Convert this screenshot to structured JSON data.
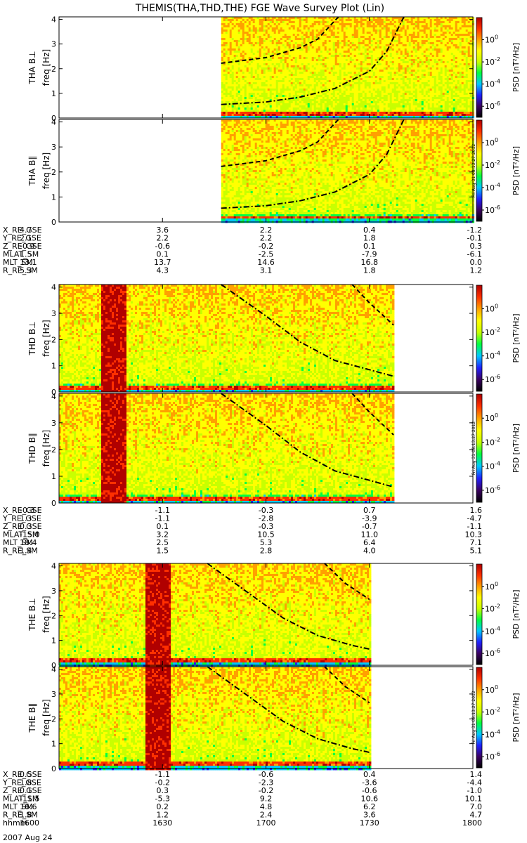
{
  "title": "THEMIS(THA,THD,THE) FGE Wave Survey Plot (Lin)",
  "date_label": "2007 Aug 24",
  "stamp": "Fri Aug 31 08:13:27 2012",
  "ylabel_freq": "freq [Hz]",
  "colorbar_label": "PSD [nT²/Hz]",
  "chart_data": {
    "type": "heatmap",
    "x_range_hhmm": [
      "1600",
      "1800"
    ],
    "x_ticks": [
      "1600",
      "1630",
      "1700",
      "1730",
      "1800"
    ],
    "y_range_hz": [
      0,
      4.1
    ],
    "y_ticks": [
      "0",
      "1",
      "2",
      "3",
      "4"
    ],
    "colorbar": {
      "scale": "log",
      "range": [
        1e-07,
        100
      ],
      "ticks": [
        {
          "base": "10",
          "exp": "0",
          "value": 1
        },
        {
          "base": "10",
          "exp": "-2",
          "value": 0.01
        },
        {
          "base": "10",
          "exp": "-4",
          "value": 0.0001
        },
        {
          "base": "10",
          "exp": "-6",
          "value": 1e-06
        }
      ],
      "colors": [
        "#000000",
        "#3a0060",
        "#2020ff",
        "#00c8ff",
        "#00ff40",
        "#c8ff00",
        "#ffff00",
        "#ffa000",
        "#ff3000",
        "#b00000"
      ]
    },
    "panels": [
      {
        "label": "THA B⊥",
        "data_start": "1647",
        "data_end": "1800",
        "gyro_he": [
          [
            1647,
            2.22
          ],
          [
            1700,
            2.45
          ],
          [
            1710,
            2.85
          ],
          [
            1715,
            3.2
          ],
          [
            1721,
            4.1
          ]
        ],
        "gyro_o": [
          [
            1647,
            0.55
          ],
          [
            1700,
            0.65
          ],
          [
            1710,
            0.85
          ],
          [
            1720,
            1.2
          ],
          [
            1730,
            1.9
          ],
          [
            1735,
            2.7
          ],
          [
            1740,
            4.1
          ]
        ]
      },
      {
        "label": "THA B∥",
        "data_start": "1647",
        "data_end": "1800",
        "gyro_he": [
          [
            1647,
            2.22
          ],
          [
            1700,
            2.45
          ],
          [
            1710,
            2.85
          ],
          [
            1715,
            3.2
          ],
          [
            1721,
            4.1
          ]
        ],
        "gyro_o": [
          [
            1647,
            0.55
          ],
          [
            1700,
            0.65
          ],
          [
            1710,
            0.85
          ],
          [
            1720,
            1.2
          ],
          [
            1730,
            1.9
          ],
          [
            1735,
            2.7
          ],
          [
            1740,
            4.1
          ]
        ]
      },
      {
        "label": "THD B⊥",
        "data_start": "1600",
        "data_end": "1737",
        "gyro_he": [
          [
            1725,
            4.1
          ],
          [
            1730,
            3.4
          ],
          [
            1737,
            2.55
          ]
        ],
        "gyro_o": [
          [
            1647,
            4.1
          ],
          [
            1700,
            2.9
          ],
          [
            1710,
            1.9
          ],
          [
            1720,
            1.2
          ],
          [
            1730,
            0.85
          ],
          [
            1737,
            0.6
          ]
        ]
      },
      {
        "label": "THD B∥",
        "data_start": "1600",
        "data_end": "1737",
        "gyro_he": [
          [
            1725,
            4.1
          ],
          [
            1730,
            3.4
          ],
          [
            1737,
            2.55
          ]
        ],
        "gyro_o": [
          [
            1647,
            4.1
          ],
          [
            1700,
            2.9
          ],
          [
            1710,
            1.9
          ],
          [
            1720,
            1.2
          ],
          [
            1730,
            0.85
          ],
          [
            1737,
            0.6
          ]
        ]
      },
      {
        "label": "THE B⊥",
        "data_start": "1600",
        "data_end": "1730",
        "gyro_he": [
          [
            1717,
            4.1
          ],
          [
            1723,
            3.3
          ],
          [
            1730,
            2.65
          ]
        ],
        "gyro_o": [
          [
            1643,
            4.1
          ],
          [
            1655,
            2.9
          ],
          [
            1705,
            1.9
          ],
          [
            1715,
            1.2
          ],
          [
            1725,
            0.8
          ],
          [
            1730,
            0.65
          ]
        ]
      },
      {
        "label": "THE B∥",
        "data_start": "1600",
        "data_end": "1730",
        "gyro_he": [
          [
            1717,
            4.1
          ],
          [
            1723,
            3.3
          ],
          [
            1730,
            2.65
          ]
        ],
        "gyro_o": [
          [
            1643,
            4.1
          ],
          [
            1655,
            2.9
          ],
          [
            1705,
            1.9
          ],
          [
            1715,
            1.2
          ],
          [
            1725,
            0.8
          ],
          [
            1730,
            0.65
          ]
        ]
      }
    ]
  },
  "ephemeris": [
    {
      "probe": "THA",
      "rows": [
        {
          "label": "X_RE_GSE",
          "values": [
            "4.7",
            "3.6",
            "2.2",
            "0.4",
            "-1.2"
          ]
        },
        {
          "label": "Y_RE_GSE",
          "values": [
            "2.1",
            "2.2",
            "2.2",
            "1.8",
            "-0.1"
          ]
        },
        {
          "label": "Z_RE_GSE",
          "values": [
            "-0.9",
            "-0.6",
            "-0.2",
            "0.1",
            "0.3"
          ]
        },
        {
          "label": "MLAT_SM",
          "values": [
            "1.5",
            "0.1",
            "-2.5",
            "-7.9",
            "-6.1"
          ]
        },
        {
          "label": "MLT_SM",
          "values": [
            "13.1",
            "13.7",
            "14.6",
            "16.8",
            "0.0"
          ]
        },
        {
          "label": "R_RE_SM",
          "values": [
            "5.3",
            "4.3",
            "3.1",
            "1.8",
            "1.2"
          ]
        }
      ]
    },
    {
      "probe": "THD",
      "rows": [
        {
          "label": "X_RE_GSE",
          "values": [
            "-0.3",
            "-1.1",
            "-0.3",
            "0.7",
            "1.6"
          ]
        },
        {
          "label": "Y_RE_GSE",
          "values": [
            "1.3",
            "-1.1",
            "-2.8",
            "-3.9",
            "-4.7"
          ]
        },
        {
          "label": "Z_RE_GSE",
          "values": [
            "0.3",
            "0.1",
            "-0.3",
            "-0.7",
            "-1.1"
          ]
        },
        {
          "label": "MLAT_SM",
          "values": [
            "-15.0",
            "3.2",
            "10.5",
            "11.0",
            "10.3"
          ]
        },
        {
          "label": "MLT_SM",
          "values": [
            "18.4",
            "2.5",
            "5.3",
            "6.4",
            "7.1"
          ]
        },
        {
          "label": "R_RE_SM",
          "values": [
            "1.4",
            "1.5",
            "2.8",
            "4.0",
            "5.1"
          ]
        }
      ]
    },
    {
      "probe": "THE",
      "rows": [
        {
          "label": "X_RE_GSE",
          "values": [
            "0.5",
            "-1.1",
            "-0.6",
            "0.4",
            "1.4"
          ]
        },
        {
          "label": "Y_RE_GSE",
          "values": [
            "1.8",
            "-0.2",
            "-2.3",
            "-3.6",
            "-4.4"
          ]
        },
        {
          "label": "Z_RE_GSE",
          "values": [
            "0.1",
            "0.3",
            "-0.2",
            "-0.6",
            "-1.0"
          ]
        },
        {
          "label": "MLAT_SM",
          "values": [
            "-11.5",
            "-5.3",
            "9.2",
            "10.6",
            "10.1"
          ]
        },
        {
          "label": "MLT_SM",
          "values": [
            "16.6",
            "0.2",
            "4.8",
            "6.2",
            "7.0"
          ]
        },
        {
          "label": "R_RE_SM",
          "values": [
            "1.8",
            "1.2",
            "2.4",
            "3.6",
            "4.7"
          ]
        },
        {
          "label": "hhmm",
          "values": [
            "1600",
            "1630",
            "1700",
            "1730",
            "1800"
          ]
        }
      ]
    }
  ]
}
